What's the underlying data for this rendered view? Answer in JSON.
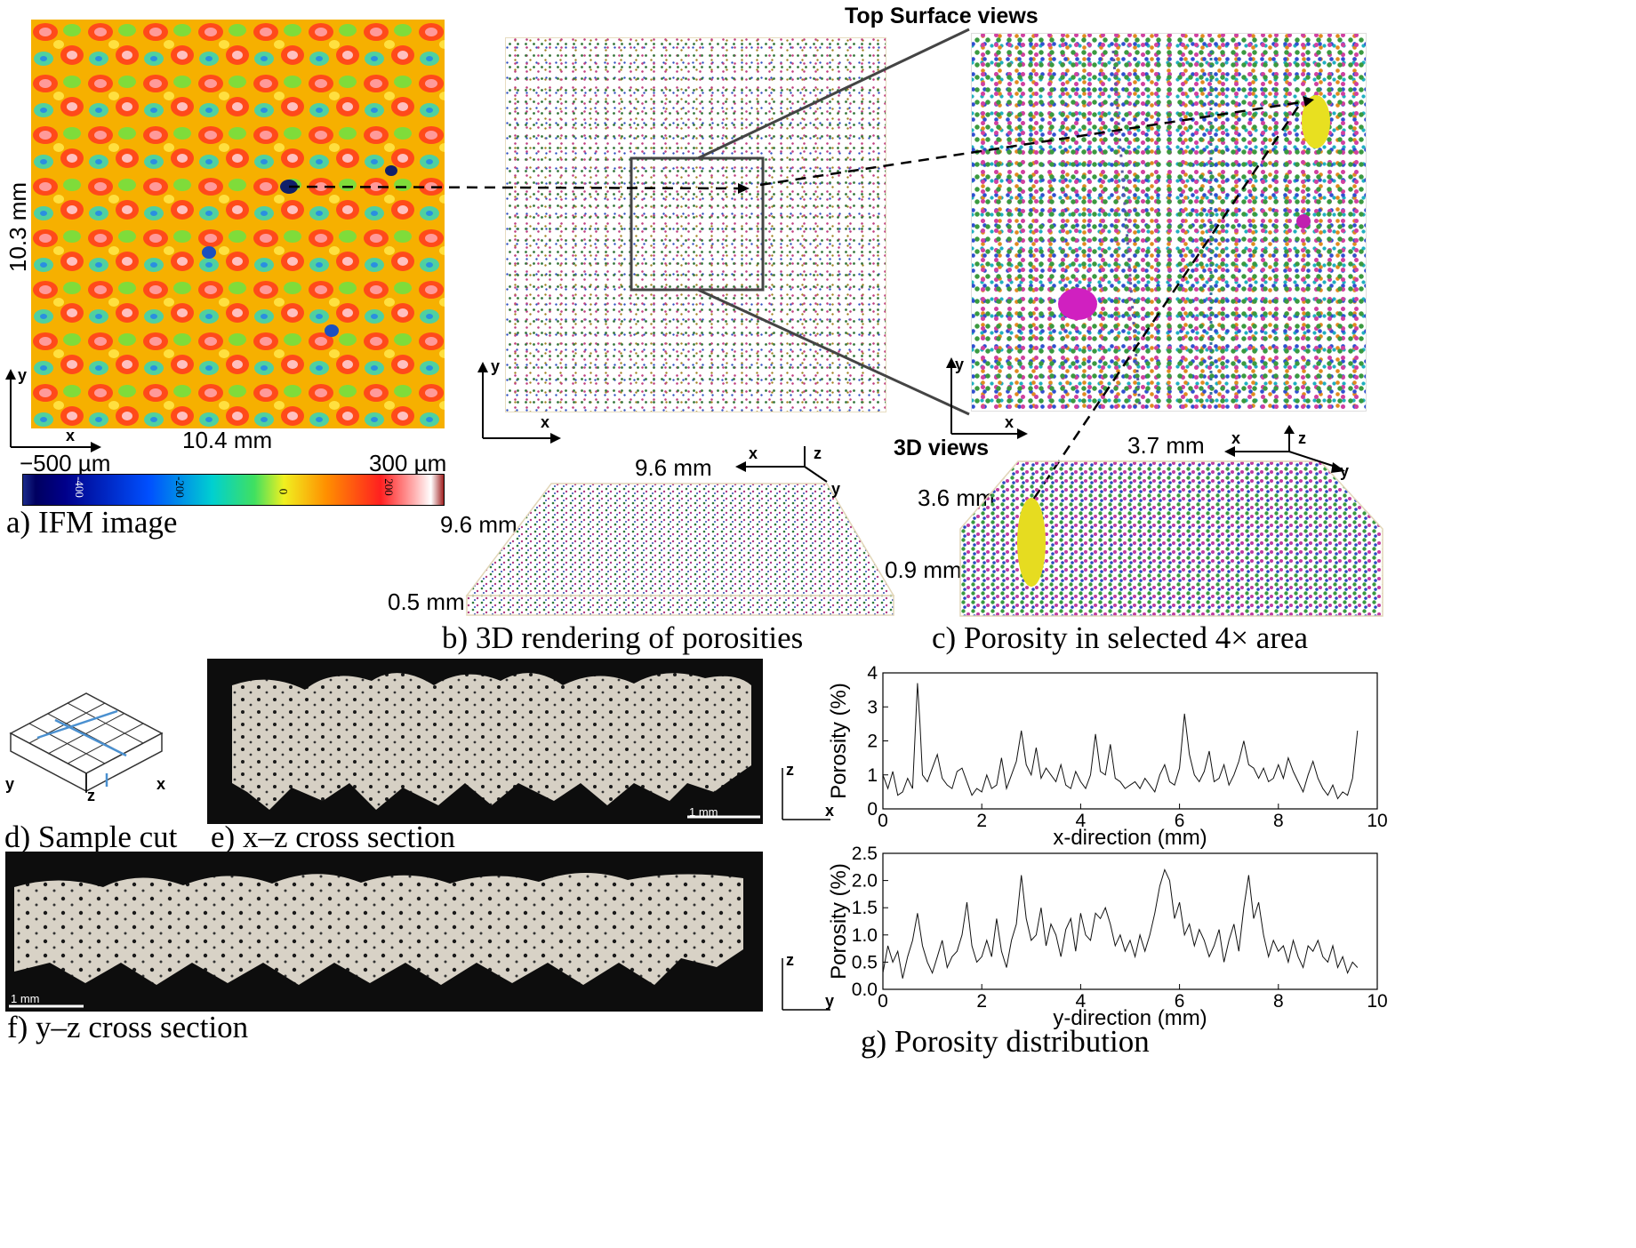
{
  "panel_a": {
    "caption": "a) IFM image",
    "height_label": "10.3 mm",
    "width_label": "10.4 mm",
    "axis_x": "x",
    "axis_y": "y",
    "cbar_min": "−500 µm",
    "cbar_max": "300 µm",
    "cbar_ticks": [
      "-400",
      "-200",
      "0",
      "200"
    ]
  },
  "panel_b": {
    "caption": "b) 3D rendering of porosities",
    "top_title": "Top Surface views",
    "axis_x": "x",
    "axis_y": "y",
    "dim_top": "9.6 mm",
    "dim_side": "9.6 mm",
    "dim_height": "0.5 mm",
    "axis3d": {
      "x": "x",
      "y": "y",
      "z": "z"
    }
  },
  "panel_c": {
    "caption": "c) Porosity in selected 4× area",
    "views3d_title": "3D views",
    "axis_x": "x",
    "axis_y": "y",
    "dim_top": "3.7 mm",
    "dim_side": "3.6 mm",
    "dim_height": "0.9 mm",
    "axis3d": {
      "x": "x",
      "y": "y",
      "z": "z"
    }
  },
  "panel_d": {
    "caption": "d) Sample cut",
    "x": "x",
    "y": "y",
    "z": "z"
  },
  "panel_e": {
    "caption": "e) x–z cross section",
    "scale": "1 mm",
    "axis_h": "x",
    "axis_v": "z"
  },
  "panel_f": {
    "caption": "f) y–z cross section",
    "scale": "1 mm",
    "axis_h": "y",
    "axis_v": "z"
  },
  "panel_g": {
    "caption": "g) Porosity distribution"
  },
  "chart_data": [
    {
      "type": "line",
      "xlabel": "x-direction (mm)",
      "ylabel": "Porosity (%)",
      "xlim": [
        0,
        10
      ],
      "ylim": [
        0,
        4
      ],
      "xticks": [
        "0",
        "2",
        "4",
        "6",
        "8",
        "10"
      ],
      "yticks": [
        "0",
        "1",
        "2",
        "3",
        "4"
      ],
      "x": [
        0.0,
        0.1,
        0.2,
        0.3,
        0.4,
        0.5,
        0.6,
        0.7,
        0.75,
        0.8,
        0.9,
        1.0,
        1.1,
        1.2,
        1.3,
        1.4,
        1.5,
        1.6,
        1.7,
        1.8,
        1.9,
        2.0,
        2.1,
        2.2,
        2.3,
        2.4,
        2.5,
        2.6,
        2.7,
        2.8,
        2.9,
        3.0,
        3.1,
        3.2,
        3.3,
        3.4,
        3.5,
        3.6,
        3.7,
        3.8,
        3.9,
        4.0,
        4.1,
        4.2,
        4.3,
        4.4,
        4.5,
        4.6,
        4.7,
        4.8,
        4.9,
        5.0,
        5.1,
        5.2,
        5.3,
        5.4,
        5.5,
        5.6,
        5.7,
        5.8,
        5.9,
        6.0,
        6.1,
        6.2,
        6.3,
        6.4,
        6.5,
        6.6,
        6.7,
        6.8,
        6.9,
        7.0,
        7.1,
        7.2,
        7.3,
        7.4,
        7.5,
        7.6,
        7.7,
        7.8,
        7.9,
        8.0,
        8.1,
        8.2,
        8.3,
        8.4,
        8.5,
        8.6,
        8.7,
        8.8,
        8.9,
        9.0,
        9.1,
        9.2,
        9.3,
        9.4,
        9.5,
        9.6
      ],
      "series": [
        {
          "name": "x-direction",
          "values": [
            1.0,
            0.6,
            1.1,
            0.4,
            0.5,
            0.9,
            0.6,
            3.7,
            2.5,
            1.0,
            0.8,
            1.2,
            1.6,
            0.9,
            0.7,
            0.6,
            1.1,
            1.2,
            0.8,
            0.4,
            0.6,
            0.5,
            1.0,
            0.6,
            0.7,
            1.5,
            0.6,
            1.0,
            1.4,
            2.3,
            1.3,
            1.0,
            1.8,
            0.9,
            1.2,
            1.0,
            0.8,
            1.3,
            0.7,
            0.6,
            1.1,
            0.8,
            0.6,
            1.0,
            2.2,
            1.1,
            1.0,
            1.9,
            0.9,
            0.8,
            0.6,
            0.7,
            0.8,
            0.6,
            0.9,
            0.7,
            0.5,
            1.0,
            1.3,
            0.8,
            0.7,
            1.2,
            2.8,
            1.6,
            1.0,
            0.8,
            1.1,
            1.7,
            0.8,
            0.9,
            1.3,
            0.7,
            1.0,
            1.4,
            2.0,
            1.3,
            1.2,
            0.9,
            1.2,
            0.8,
            0.9,
            1.3,
            0.9,
            1.5,
            1.1,
            0.8,
            0.5,
            1.0,
            1.4,
            0.9,
            0.6,
            0.4,
            0.7,
            0.3,
            0.5,
            0.4,
            0.9,
            2.3
          ]
        }
      ]
    },
    {
      "type": "line",
      "xlabel": "y-direction (mm)",
      "ylabel": "Porosity (%)",
      "xlim": [
        0,
        10
      ],
      "ylim": [
        0,
        2.5
      ],
      "xticks": [
        "0",
        "2",
        "4",
        "6",
        "8",
        "10"
      ],
      "yticks": [
        "0.0",
        "0.5",
        "1.0",
        "1.5",
        "2.0",
        "2.5"
      ],
      "x": [
        0.0,
        0.1,
        0.2,
        0.3,
        0.4,
        0.5,
        0.6,
        0.7,
        0.8,
        0.9,
        1.0,
        1.1,
        1.2,
        1.3,
        1.4,
        1.5,
        1.6,
        1.7,
        1.8,
        1.9,
        2.0,
        2.1,
        2.2,
        2.3,
        2.4,
        2.5,
        2.6,
        2.7,
        2.8,
        2.9,
        3.0,
        3.1,
        3.2,
        3.3,
        3.4,
        3.5,
        3.6,
        3.7,
        3.8,
        3.9,
        4.0,
        4.1,
        4.2,
        4.3,
        4.4,
        4.5,
        4.6,
        4.7,
        4.8,
        4.9,
        5.0,
        5.1,
        5.2,
        5.3,
        5.4,
        5.5,
        5.6,
        5.7,
        5.8,
        5.9,
        6.0,
        6.1,
        6.2,
        6.3,
        6.4,
        6.5,
        6.6,
        6.7,
        6.8,
        6.9,
        7.0,
        7.1,
        7.2,
        7.3,
        7.4,
        7.5,
        7.6,
        7.7,
        7.8,
        7.9,
        8.0,
        8.1,
        8.2,
        8.3,
        8.4,
        8.5,
        8.6,
        8.7,
        8.8,
        8.9,
        9.0,
        9.1,
        9.2,
        9.3,
        9.4,
        9.5,
        9.6
      ],
      "series": [
        {
          "name": "y-direction",
          "values": [
            0.3,
            0.8,
            0.5,
            0.7,
            0.2,
            0.6,
            0.9,
            1.4,
            0.8,
            0.5,
            0.3,
            0.6,
            0.9,
            0.4,
            0.6,
            0.7,
            1.0,
            1.6,
            0.8,
            0.5,
            0.6,
            0.9,
            0.6,
            1.3,
            0.7,
            0.4,
            0.9,
            1.2,
            2.1,
            1.3,
            0.9,
            1.0,
            1.5,
            0.8,
            1.2,
            1.0,
            0.6,
            1.1,
            1.3,
            0.7,
            1.4,
            1.0,
            0.9,
            1.4,
            1.3,
            1.5,
            1.2,
            0.8,
            1.0,
            0.7,
            0.9,
            0.6,
            1.0,
            0.7,
            1.0,
            1.4,
            1.9,
            2.2,
            2.0,
            1.3,
            1.6,
            1.0,
            1.2,
            0.8,
            1.1,
            0.9,
            0.6,
            0.8,
            1.1,
            0.5,
            0.9,
            1.2,
            0.7,
            1.5,
            2.1,
            1.3,
            1.6,
            1.0,
            0.6,
            0.9,
            0.7,
            0.8,
            0.5,
            0.9,
            0.6,
            0.4,
            0.8,
            0.7,
            0.9,
            0.6,
            0.5,
            0.8,
            0.4,
            0.6,
            0.3,
            0.5,
            0.4
          ]
        }
      ]
    }
  ]
}
